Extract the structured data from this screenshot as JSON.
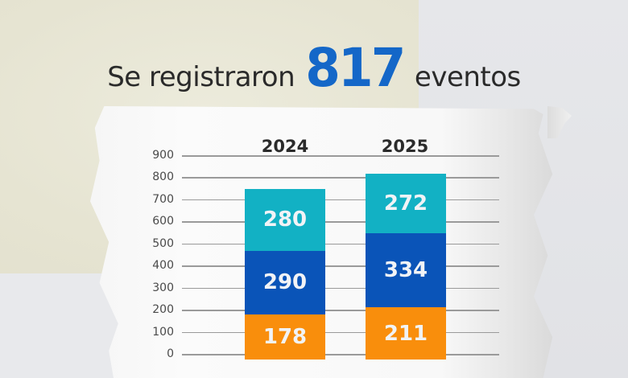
{
  "headline": {
    "prefix": "Se registraron",
    "number": "817",
    "suffix": "eventos"
  },
  "colors": {
    "top_segment": "#12b1c4",
    "middle_segment": "#0a54b8",
    "bottom_segment": "#f98e0c",
    "headline_number": "#1467c8"
  },
  "chart_data": {
    "type": "bar",
    "stacked": true,
    "title": "Se registraron 817 eventos",
    "categories": [
      "2024",
      "2025"
    ],
    "series": [
      {
        "name": "bottom",
        "color": "#f98e0c",
        "values": [
          178,
          211
        ]
      },
      {
        "name": "middle",
        "color": "#0a54b8",
        "values": [
          290,
          334
        ]
      },
      {
        "name": "top",
        "color": "#12b1c4",
        "values": [
          280,
          272
        ]
      }
    ],
    "totals": [
      748,
      817
    ],
    "xlabel": "",
    "ylabel": "",
    "ylim": [
      0,
      900
    ],
    "yticks": [
      "900",
      "800",
      "700",
      "600",
      "500",
      "400",
      "300",
      "200",
      "100",
      "0"
    ],
    "grid": true,
    "legend": "none"
  }
}
